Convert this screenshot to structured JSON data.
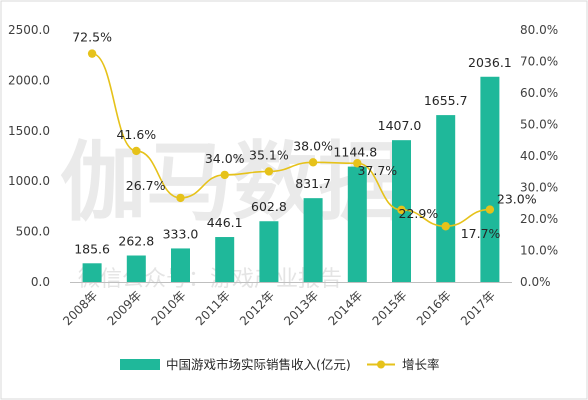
{
  "colors": {
    "bar": "#1fb89a",
    "line": "#e6c21a",
    "marker": "#e6c21a",
    "axis": "#bfbfbf",
    "border": "#d9d9d9"
  },
  "watermark": {
    "main": "伽马数据",
    "sub": "微信公众号：游戏产业报告"
  },
  "chart_data": {
    "type": "bar",
    "categories": [
      "2008年",
      "2009年",
      "2010年",
      "2011年",
      "2012年",
      "2013年",
      "2014年",
      "2015年",
      "2016年",
      "2017年"
    ],
    "series": [
      {
        "name": "中国游戏市场实际销售收入(亿元)",
        "type": "bar",
        "axis": "left",
        "values": [
          185.6,
          262.8,
          333.0,
          446.1,
          602.8,
          831.7,
          1144.8,
          1407.0,
          1655.7,
          2036.1
        ],
        "labels": [
          "185.6",
          "262.8",
          "333.0",
          "446.1",
          "602.8",
          "831.7",
          "1144.8",
          "1407.0",
          "1655.7",
          "2036.1"
        ]
      },
      {
        "name": "增长率",
        "type": "line",
        "axis": "right",
        "values": [
          72.5,
          41.6,
          26.7,
          34.0,
          35.1,
          38.0,
          37.7,
          22.9,
          17.7,
          23.0
        ],
        "labels": [
          "72.5%",
          "41.6%",
          "26.7%",
          "34.0%",
          "35.1%",
          "38.0%",
          "37.7%",
          "22.9%",
          "17.7%",
          "23.0%"
        ]
      }
    ],
    "left_axis": {
      "min": 0,
      "max": 2500,
      "ticks": [
        "0.0",
        "500.0",
        "1000.0",
        "1500.0",
        "2000.0",
        "2500.0"
      ]
    },
    "right_axis": {
      "min": 0,
      "max": 80,
      "ticks": [
        "0.0%",
        "10.0%",
        "20.0%",
        "30.0%",
        "40.0%",
        "50.0%",
        "60.0%",
        "70.0%",
        "80.0%"
      ]
    },
    "grid": false,
    "legend": "bottom"
  }
}
